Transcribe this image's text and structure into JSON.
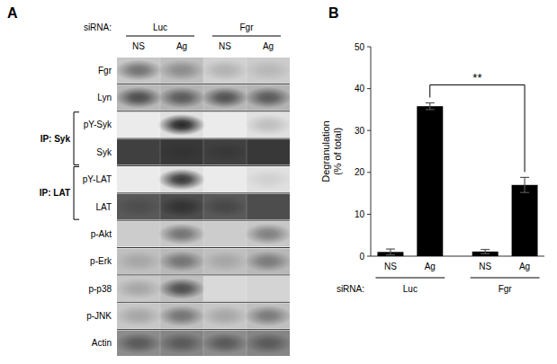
{
  "chart_data": [
    {
      "type": "blot",
      "title": "A",
      "group_label": "siRNA:",
      "groups": [
        "Luc",
        "Fgr"
      ],
      "categories": [
        "NS",
        "Ag",
        "NS",
        "Ag"
      ],
      "rows": [
        "Fgr",
        "Lyn",
        "pY-Syk",
        "Syk",
        "pY-LAT",
        "LAT",
        "p-Akt",
        "p-Erk",
        "p-p38",
        "p-JNK",
        "Actin"
      ],
      "row_groups": [
        {
          "label": "IP: Syk",
          "rows": [
            "pY-Syk",
            "Syk"
          ]
        },
        {
          "label": "IP: LAT",
          "rows": [
            "pY-LAT",
            "LAT"
          ]
        }
      ],
      "cells": [
        [
          0.55,
          0.45,
          0.3,
          0.28
        ],
        [
          0.7,
          0.65,
          0.68,
          0.65
        ],
        [
          0.03,
          0.85,
          0.03,
          0.25
        ],
        [
          0.75,
          0.8,
          0.78,
          0.75
        ],
        [
          0.03,
          0.78,
          0.03,
          0.18
        ],
        [
          0.7,
          0.8,
          0.72,
          0.68
        ],
        [
          0.05,
          0.55,
          0.05,
          0.5
        ],
        [
          0.35,
          0.55,
          0.35,
          0.52
        ],
        [
          0.35,
          0.7,
          0.08,
          0.08
        ],
        [
          0.35,
          0.55,
          0.35,
          0.52
        ],
        [
          0.65,
          0.65,
          0.65,
          0.65
        ]
      ],
      "background": [
        [
          0.78,
          0.75,
          0.82,
          0.8
        ],
        [
          0.72,
          0.7,
          0.72,
          0.7
        ],
        [
          0.92,
          0.88,
          0.92,
          0.88
        ],
        [
          0.25,
          0.22,
          0.25,
          0.22
        ],
        [
          0.92,
          0.88,
          0.92,
          0.88
        ],
        [
          0.35,
          0.3,
          0.35,
          0.3
        ],
        [
          0.8,
          0.78,
          0.8,
          0.78
        ],
        [
          0.75,
          0.72,
          0.75,
          0.72
        ],
        [
          0.78,
          0.75,
          0.85,
          0.83
        ],
        [
          0.78,
          0.75,
          0.78,
          0.75
        ],
        [
          0.55,
          0.52,
          0.55,
          0.52
        ]
      ]
    },
    {
      "type": "bar",
      "title": "B",
      "categories": [
        "NS",
        "Ag",
        "NS",
        "Ag"
      ],
      "values": [
        1.0,
        35.8,
        1.1,
        17.0
      ],
      "errors": [
        0.7,
        0.8,
        0.5,
        1.8
      ],
      "color": "#000000",
      "ylabel": "Degranulation\n(% of total)",
      "ylim": [
        0,
        50
      ],
      "yticks": [
        0,
        10,
        20,
        30,
        40,
        50
      ],
      "group_label": "siRNA:",
      "groups": [
        "Luc",
        "Fgr"
      ],
      "annotations": [
        {
          "text": "**",
          "between": [
            1,
            3
          ]
        }
      ]
    }
  ]
}
